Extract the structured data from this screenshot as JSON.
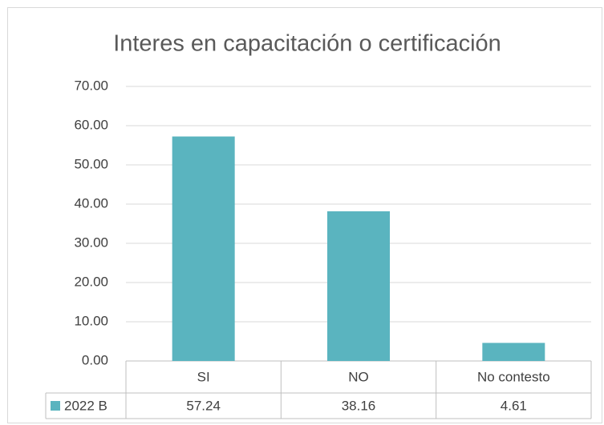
{
  "chart_data": {
    "type": "bar",
    "title": "Interes en capacitación o certificación",
    "categories": [
      "SI",
      "NO",
      "No contesto"
    ],
    "series": [
      {
        "name": "2022 B",
        "color": "#5ab4bf",
        "values": [
          57.24,
          38.16,
          4.61
        ]
      }
    ],
    "ylim": [
      0,
      70
    ],
    "yticks": [
      {
        "value": 0,
        "label": "0.00"
      },
      {
        "value": 10,
        "label": "10.00"
      },
      {
        "value": 20,
        "label": "20.00"
      },
      {
        "value": 30,
        "label": "30.00"
      },
      {
        "value": 40,
        "label": "40.00"
      },
      {
        "value": 50,
        "label": "50.00"
      },
      {
        "value": 60,
        "label": "60.00"
      },
      {
        "value": 70,
        "label": "70.00"
      }
    ],
    "grid": true
  }
}
